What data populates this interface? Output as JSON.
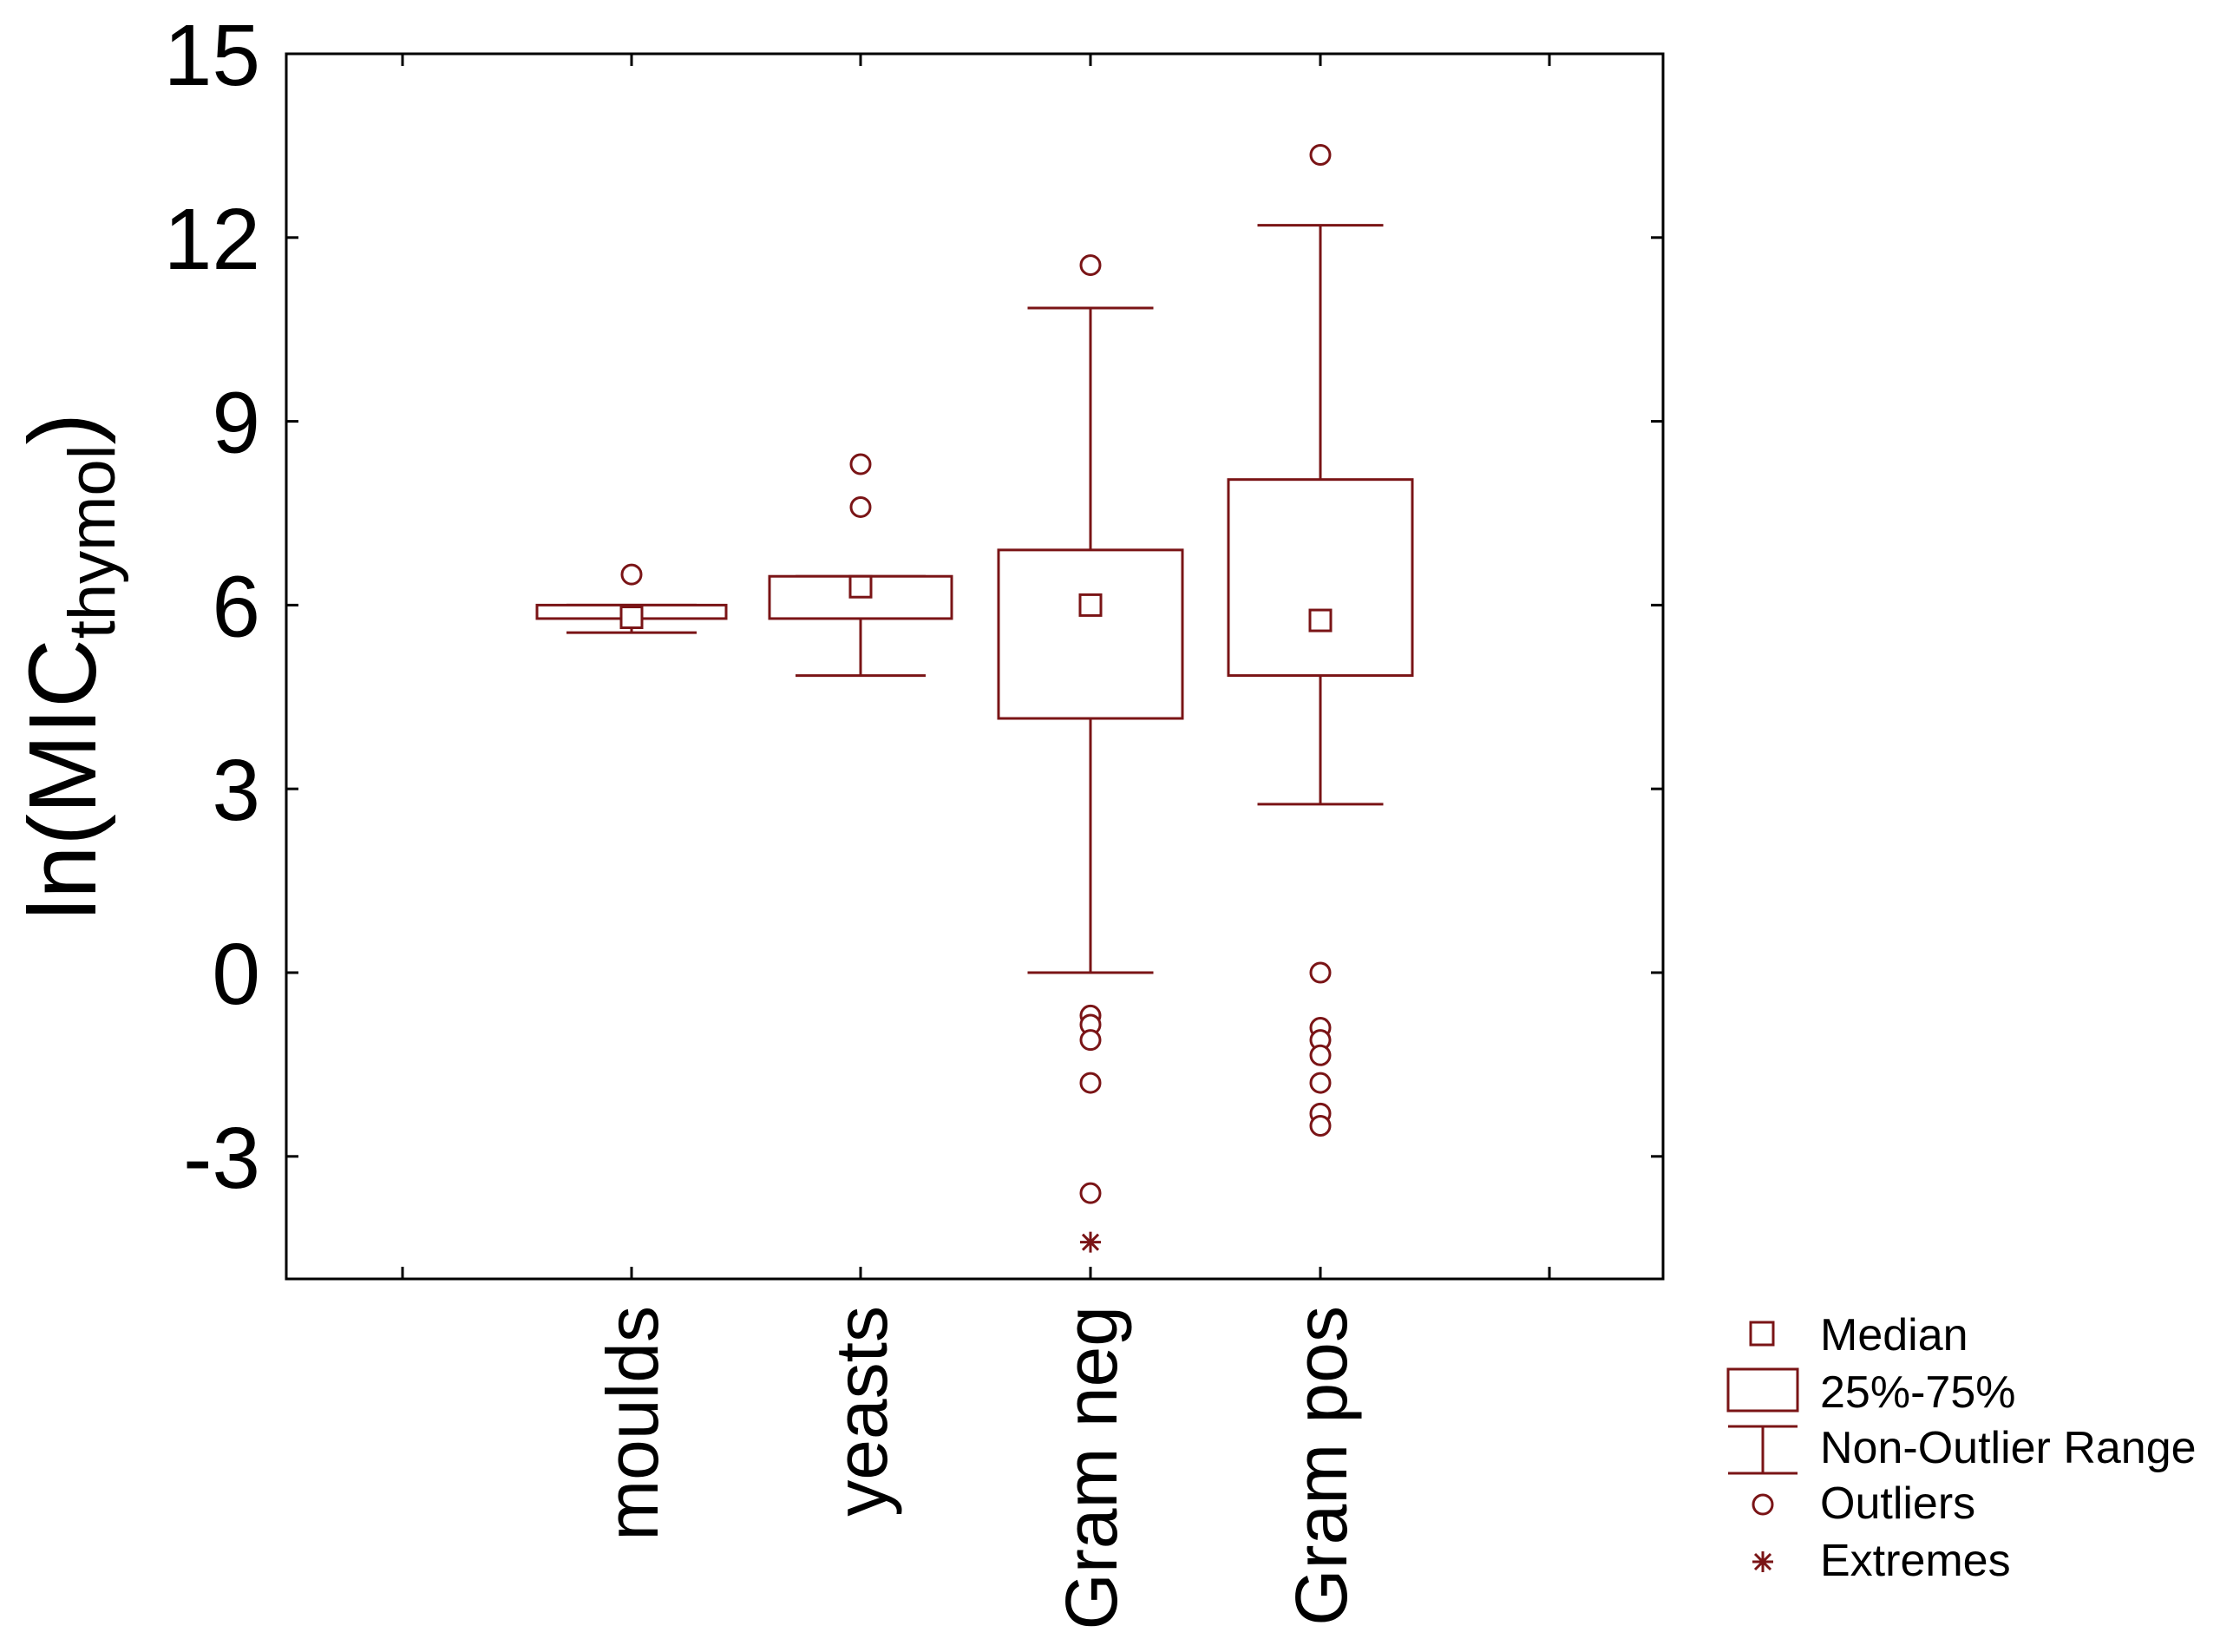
{
  "colors": {
    "mark": "#7a1416",
    "axis": "#000000",
    "background": "#ffffff"
  },
  "chart_data": {
    "type": "boxplot",
    "ylabel": {
      "main": "ln(MIC",
      "subscript": "thymol",
      "close": ")"
    },
    "ylim": [
      -5,
      15
    ],
    "yticks": [
      "15",
      "12",
      "9",
      "6",
      "3",
      "0",
      "-3"
    ],
    "ytick_values": [
      15,
      12,
      9,
      6,
      3,
      0,
      -3
    ],
    "categories": [
      "moulds",
      "yeasts",
      "Gram neg",
      "Gram pos"
    ],
    "series": [
      {
        "category": "moulds",
        "median": 5.8,
        "q1": 5.78,
        "q3": 6.0,
        "whisker_low": 5.55,
        "whisker_high": 6.0,
        "outliers": [
          6.5
        ],
        "extremes": []
      },
      {
        "category": "yeasts",
        "median": 6.3,
        "q1": 5.78,
        "q3": 6.47,
        "whisker_low": 4.85,
        "whisker_high": 6.47,
        "outliers": [
          7.6,
          8.3
        ],
        "extremes": []
      },
      {
        "category": "Gram neg",
        "median": 6.0,
        "q1": 4.15,
        "q3": 6.9,
        "whisker_low": 0.0,
        "whisker_high": 10.85,
        "outliers": [
          11.55,
          -0.7,
          -0.85,
          -1.1,
          -1.8,
          -3.6
        ],
        "extremes": [
          -4.4
        ]
      },
      {
        "category": "Gram pos",
        "median": 5.75,
        "q1": 4.85,
        "q3": 8.05,
        "whisker_low": 2.75,
        "whisker_high": 12.2,
        "outliers": [
          13.35,
          0.0,
          -0.9,
          -1.1,
          -1.35,
          -1.8,
          -2.3,
          -2.5
        ],
        "extremes": []
      }
    ],
    "legend": {
      "position": "bottom-right",
      "entries": [
        "Median",
        "25%-75%",
        "Non-Outlier Range",
        "Outliers",
        "Extremes"
      ]
    }
  }
}
